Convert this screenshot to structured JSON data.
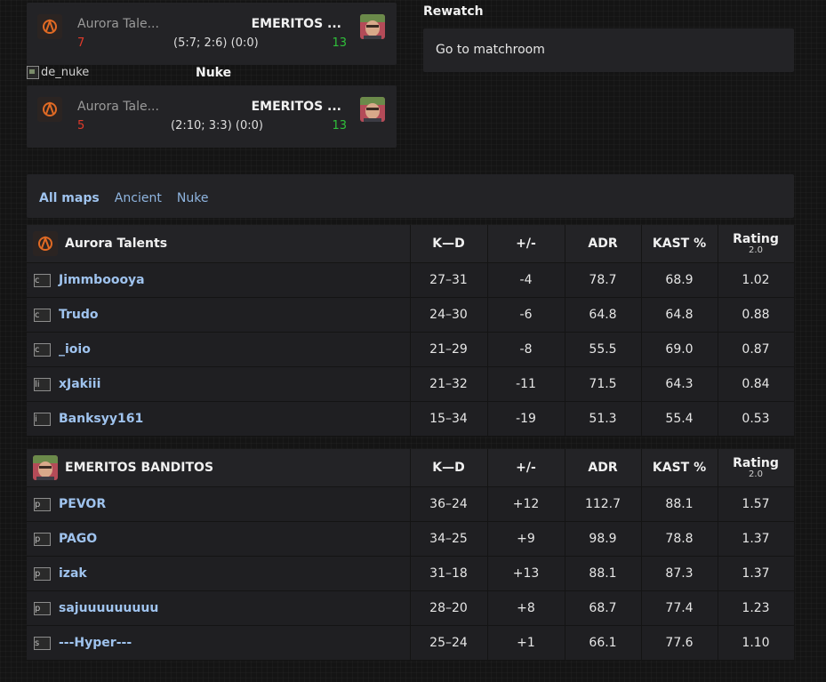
{
  "matches": [
    {
      "team1": "Aurora Tale...",
      "team2": "EMERITOS ...",
      "score1": "7",
      "score2": "13",
      "halves": "(5:7; 2:6) (0:0)"
    },
    {
      "map_img_alt": "de_nuke",
      "map_name": "Nuke",
      "team1": "Aurora Tale...",
      "team2": "EMERITOS ...",
      "score1": "5",
      "score2": "13",
      "halves": "(2:10; 3:3) (0:0)"
    }
  ],
  "rewatch": {
    "title": "Rewatch",
    "matchroom_label": "Go to matchroom"
  },
  "map_tabs": [
    "All maps",
    "Ancient",
    "Nuke"
  ],
  "columns": {
    "kd": "K—D",
    "pm": "+/-",
    "adr": "ADR",
    "kast": "KAST %",
    "rating": "Rating",
    "rating_version": "2.0"
  },
  "teams": [
    {
      "name": "Aurora Talents",
      "players": [
        {
          "img_alt": "c",
          "nick": "Jimmboooya",
          "kd": "27–31",
          "pm": "-4",
          "adr": "78.7",
          "kast": "68.9",
          "rating": "1.02",
          "pm_class": "neg",
          "rating_class": "neutral"
        },
        {
          "img_alt": "c",
          "nick": "Trudo",
          "kd": "24–30",
          "pm": "-6",
          "adr": "64.8",
          "kast": "64.8",
          "rating": "0.88",
          "pm_class": "neg",
          "rating_class": "neutral"
        },
        {
          "img_alt": "c",
          "nick": "_ioio",
          "kd": "21–29",
          "pm": "-8",
          "adr": "55.5",
          "kast": "69.0",
          "rating": "0.87",
          "pm_class": "neg",
          "rating_class": "neutral"
        },
        {
          "img_alt": "li",
          "nick": "xJakiii",
          "kd": "21–32",
          "pm": "-11",
          "adr": "71.5",
          "kast": "64.3",
          "rating": "0.84",
          "pm_class": "neg",
          "rating_class": "neutral"
        },
        {
          "img_alt": "i",
          "nick": "Banksyy161",
          "kd": "15–34",
          "pm": "-19",
          "adr": "51.3",
          "kast": "55.4",
          "rating": "0.53",
          "pm_class": "neg",
          "rating_class": "neg"
        }
      ]
    },
    {
      "name": "EMERITOS BANDITOS",
      "players": [
        {
          "img_alt": "p",
          "nick": "PEVOR",
          "kd": "36–24",
          "pm": "+12",
          "adr": "112.7",
          "kast": "88.1",
          "rating": "1.57",
          "pm_class": "pos",
          "rating_class": "pos"
        },
        {
          "img_alt": "p",
          "nick": "PAGO",
          "kd": "34–25",
          "pm": "+9",
          "adr": "98.9",
          "kast": "78.8",
          "rating": "1.37",
          "pm_class": "pos",
          "rating_class": "pos"
        },
        {
          "img_alt": "p",
          "nick": "izak",
          "kd": "31–18",
          "pm": "+13",
          "adr": "88.1",
          "kast": "87.3",
          "rating": "1.37",
          "pm_class": "pos",
          "rating_class": "pos"
        },
        {
          "img_alt": "p",
          "nick": "sajuuuuuuuuu",
          "kd": "28–20",
          "pm": "+8",
          "adr": "68.7",
          "kast": "77.4",
          "rating": "1.23",
          "pm_class": "pos",
          "rating_class": "pos"
        },
        {
          "img_alt": "s",
          "nick": "---Hyper---",
          "kd": "25–24",
          "pm": "+1",
          "adr": "66.1",
          "kast": "77.6",
          "rating": "1.10",
          "pm_class": "pos",
          "rating_class": "neutral"
        }
      ]
    }
  ],
  "colors": {
    "loss": "#e03a2a",
    "win": "#2fbf3a",
    "link": "#9fc3ee",
    "tab_inactive": "#8fb5e0"
  }
}
